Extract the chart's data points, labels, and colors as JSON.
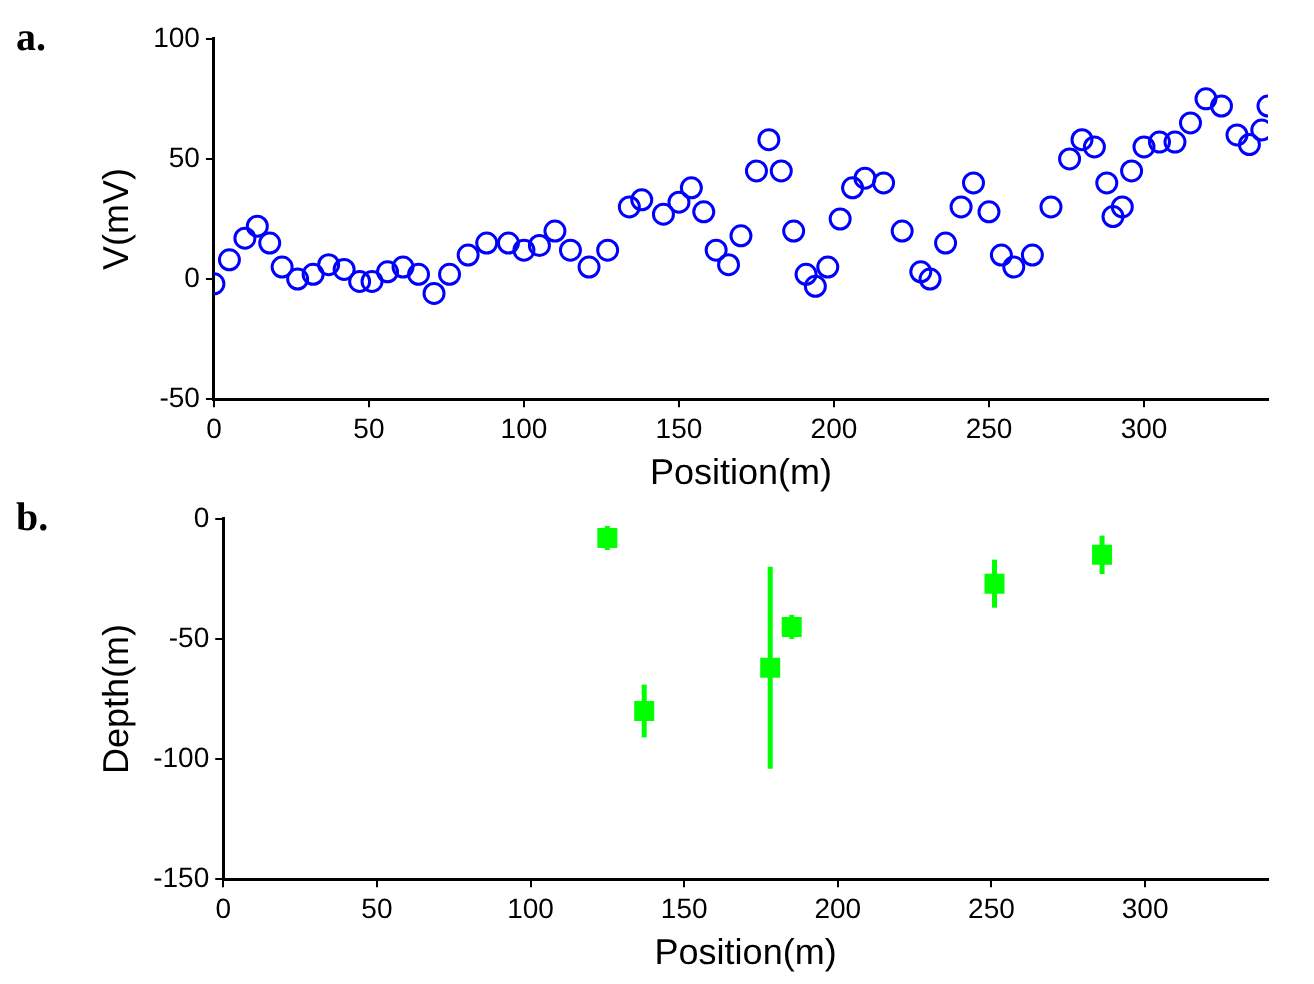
{
  "chart_data": [
    {
      "type": "scatter",
      "title": "a.",
      "xlabel": "Position(m)",
      "ylabel": "V(mV)",
      "xlim": [
        0,
        340
      ],
      "xticks": [
        0,
        50,
        100,
        150,
        200,
        250,
        300
      ],
      "ylim": [
        -50,
        100
      ],
      "yticks": [
        -50,
        0,
        50,
        100
      ],
      "grid": false,
      "legend": false,
      "marker": "circle",
      "series": [
        {
          "color": "#0000ff",
          "x": [
            0,
            5,
            10,
            14,
            18,
            22,
            27,
            32,
            37,
            42,
            47,
            51,
            56,
            61,
            66,
            71,
            76,
            82,
            88,
            95,
            100,
            105,
            110,
            115,
            121,
            127,
            134,
            138,
            145,
            150,
            154,
            158,
            162,
            166,
            170,
            175,
            179,
            183,
            187,
            191,
            194,
            198,
            202,
            206,
            210,
            216,
            222,
            228,
            231,
            236,
            241,
            245,
            250,
            254,
            258,
            264,
            270,
            276,
            280,
            284,
            288,
            290,
            293,
            296,
            300,
            305,
            310,
            315,
            320,
            325,
            330,
            334,
            338,
            340
          ],
          "values": [
            -2,
            8,
            17,
            22,
            15,
            5,
            0,
            2,
            6,
            4,
            -1,
            -1,
            3,
            5,
            2,
            -6,
            2,
            10,
            15,
            15,
            12,
            14,
            20,
            12,
            5,
            12,
            30,
            33,
            27,
            32,
            38,
            28,
            12,
            6,
            18,
            45,
            58,
            45,
            20,
            2,
            -3,
            5,
            25,
            38,
            42,
            40,
            20,
            3,
            0,
            15,
            30,
            40,
            28,
            10,
            5,
            10,
            30,
            50,
            58,
            55,
            40,
            26,
            30,
            45,
            55,
            57,
            57,
            65,
            75,
            72,
            60,
            56,
            62,
            72
          ]
        }
      ]
    },
    {
      "type": "scatter",
      "title": "b.",
      "xlabel": "Position(m)",
      "ylabel": "Depth(m)",
      "xlim": [
        0,
        340
      ],
      "xticks": [
        0,
        50,
        100,
        150,
        200,
        250,
        300
      ],
      "ylim": [
        -150,
        0
      ],
      "yticks": [
        -150,
        -100,
        -50,
        0
      ],
      "grid": false,
      "legend": false,
      "marker": "square",
      "series": [
        {
          "color": "#00ff00",
          "x": [
            125,
            137,
            178,
            185,
            251,
            286
          ],
          "values": [
            -8,
            -80,
            -62,
            -45,
            -27,
            -15
          ],
          "errors": [
            5,
            11,
            42,
            5,
            10,
            8
          ]
        }
      ]
    }
  ]
}
